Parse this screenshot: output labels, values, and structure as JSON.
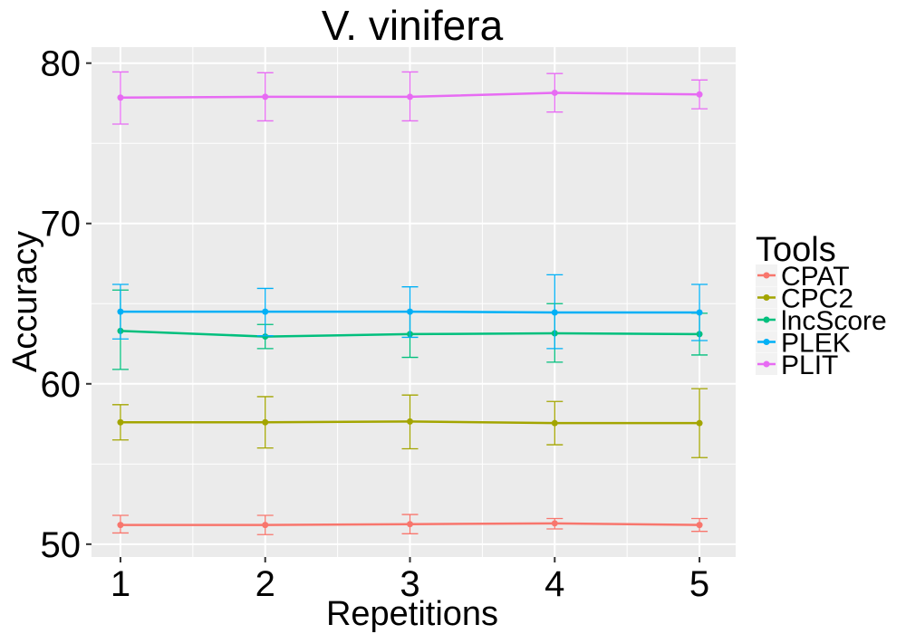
{
  "chart_data": {
    "type": "line",
    "title": "V. vinifera",
    "xlabel": "Repetitions",
    "ylabel": "Accuracy",
    "x": [
      1,
      2,
      3,
      4,
      5
    ],
    "x_ticks": [
      1,
      2,
      3,
      4,
      5
    ],
    "y_ticks": [
      50,
      60,
      70,
      80
    ],
    "xlim": [
      0.8,
      5.25
    ],
    "ylim": [
      49.2,
      81
    ],
    "grid": true,
    "legend_title": "Tools",
    "legend_position": "right",
    "series": [
      {
        "name": "CPAT",
        "color": "#F8766D",
        "values": [
          51.2,
          51.2,
          51.25,
          51.3,
          51.2
        ],
        "lower": [
          50.7,
          50.6,
          50.65,
          50.95,
          50.8
        ],
        "upper": [
          51.8,
          51.8,
          51.85,
          51.6,
          51.6
        ]
      },
      {
        "name": "CPC2",
        "color": "#A3A500",
        "values": [
          57.6,
          57.6,
          57.65,
          57.55,
          57.55
        ],
        "lower": [
          56.5,
          56.0,
          55.95,
          56.2,
          55.4
        ],
        "upper": [
          58.7,
          59.2,
          59.3,
          58.9,
          59.7
        ]
      },
      {
        "name": "lncScore",
        "color": "#00BF7D",
        "values": [
          63.3,
          62.95,
          63.1,
          63.15,
          63.1
        ],
        "lower": [
          60.9,
          62.2,
          61.65,
          61.35,
          61.8
        ],
        "upper": [
          65.85,
          63.7,
          64.5,
          65.0,
          64.4
        ]
      },
      {
        "name": "PLEK",
        "color": "#00B0F6",
        "values": [
          64.5,
          64.5,
          64.5,
          64.45,
          64.45
        ],
        "lower": [
          62.8,
          63.0,
          62.9,
          62.2,
          62.7
        ],
        "upper": [
          66.2,
          65.95,
          66.05,
          66.8,
          66.2
        ]
      },
      {
        "name": "PLIT",
        "color": "#E76BF3",
        "values": [
          77.85,
          77.9,
          77.9,
          78.15,
          78.05
        ],
        "lower": [
          76.2,
          76.4,
          76.4,
          76.95,
          77.15
        ],
        "upper": [
          79.45,
          79.4,
          79.45,
          79.35,
          78.95
        ]
      }
    ]
  }
}
